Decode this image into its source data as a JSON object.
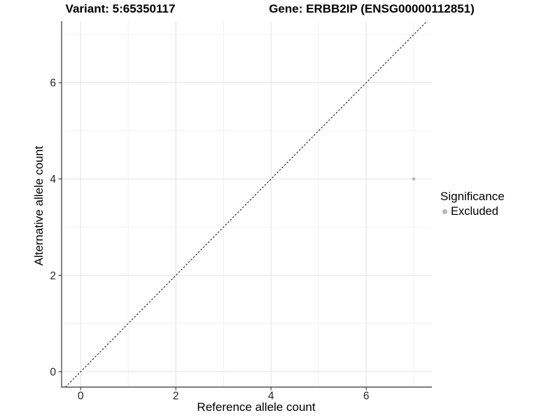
{
  "figure": {
    "background": "#ffffff"
  },
  "chart_data": {
    "type": "scatter",
    "titles": [
      "Variant: 5:65350117",
      "Gene: ERBB2IP (ENSG00000112851)"
    ],
    "xlabel": "Reference allele count",
    "ylabel": "Alternative allele count",
    "xlim": [
      -0.4,
      7.38
    ],
    "ylim": [
      -0.32,
      7.28
    ],
    "x_ticks": [
      0,
      2,
      4,
      6
    ],
    "y_ticks": [
      0,
      2,
      4,
      6
    ],
    "x_minor_ticks": [
      1,
      3,
      5,
      7
    ],
    "y_minor_ticks": [
      1,
      3,
      5,
      7
    ],
    "grid": "major+minor",
    "legend": {
      "title": "Significance",
      "position": "right"
    },
    "reference_line": {
      "type": "identity",
      "slope": 1,
      "intercept": 0,
      "style": "dashed"
    },
    "series": [
      {
        "name": "Excluded",
        "color": "#b5b5b5",
        "points": [
          {
            "x": 7,
            "y": 4
          }
        ]
      }
    ]
  },
  "colors": {
    "background": "#ffffff",
    "grid_major": "#e2e2e2",
    "grid_minor": "#ededed",
    "axis": "#333333",
    "tick_text": "#262626",
    "title_text": "#000000",
    "reference_line": "#000000",
    "point": "#b5b5b5"
  }
}
